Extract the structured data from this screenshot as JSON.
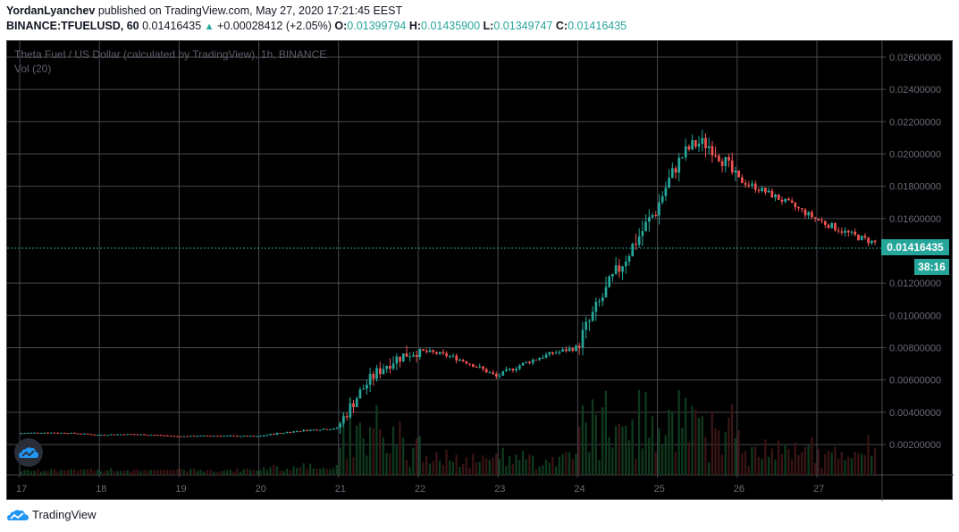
{
  "header": {
    "author": "YordanLyanchev",
    "published_text": "published on TradingView.com, May 27, 2020 17:21:45 EEST",
    "symbol": "BINANCE:TFUELUSD, 60",
    "last_price": "0.01416435",
    "change_arrow": "▲",
    "change": "+0.00028412 (+2.05%)",
    "open_label": "O:",
    "open": "0.01399794",
    "high_label": "H:",
    "high": "0.01435900",
    "low_label": "L:",
    "low": "0.01349747",
    "close_label": "C:",
    "close": "0.01416435"
  },
  "legend": {
    "series_title": "Theta Fuel / US Dollar (calculated by TradingView), 1h, BINANCE",
    "indicator": "Vol (20)"
  },
  "price_tag": {
    "value": "0.01416435",
    "countdown": "38:16"
  },
  "footer": {
    "brand": "TradingView"
  },
  "colors": {
    "up": "#26a69a",
    "down": "#ef5350",
    "background": "#000000",
    "grid": "#4a4a52",
    "axis_text": "#6a6d78",
    "last_price_line": "#26a69a",
    "volume_up": "#0f3a1e",
    "volume_down": "#3a1414"
  },
  "chart_data": {
    "type": "candlestick",
    "title": "Theta Fuel / US Dollar (calculated by TradingView), 1h, BINANCE",
    "symbol": "BINANCE:TFUELUSD",
    "interval": "60",
    "xlabel": "",
    "ylabel": "",
    "y_ticks": [
      "0.02600000",
      "0.02400000",
      "0.02200000",
      "0.02000000",
      "0.01800000",
      "0.01600000",
      "0.01200000",
      "0.01000000",
      "0.00800000",
      "0.00600000",
      "0.00400000",
      "0.00200000"
    ],
    "ylim": [
      0.0,
      0.027
    ],
    "x_ticks": [
      "17",
      "18",
      "19",
      "20",
      "21",
      "22",
      "23",
      "24",
      "25",
      "26",
      "27"
    ],
    "grid": true,
    "last_price": 0.01416435,
    "ohlc_summary": {
      "open": 0.01399794,
      "high": 0.014359,
      "low": 0.01349747,
      "close": 0.01416435,
      "change": 0.00028412,
      "change_pct": 2.05
    },
    "approx_daily_path": [
      {
        "day": "17",
        "open": 0.0027,
        "high": 0.0029,
        "low": 0.0025,
        "close": 0.0026
      },
      {
        "day": "18",
        "open": 0.0026,
        "high": 0.0028,
        "low": 0.0024,
        "close": 0.0025
      },
      {
        "day": "19",
        "open": 0.0025,
        "high": 0.0027,
        "low": 0.0023,
        "close": 0.0025
      },
      {
        "day": "20",
        "open": 0.0025,
        "high": 0.0032,
        "low": 0.0024,
        "close": 0.003
      },
      {
        "day": "21",
        "open": 0.003,
        "high": 0.0096,
        "low": 0.0029,
        "close": 0.0078
      },
      {
        "day": "22",
        "open": 0.0078,
        "high": 0.0085,
        "low": 0.006,
        "close": 0.0062
      },
      {
        "day": "23",
        "open": 0.0062,
        "high": 0.0085,
        "low": 0.006,
        "close": 0.008
      },
      {
        "day": "24",
        "open": 0.008,
        "high": 0.0172,
        "low": 0.0078,
        "close": 0.0165
      },
      {
        "day": "25",
        "open": 0.0165,
        "high": 0.024,
        "low": 0.016,
        "close": 0.0185
      },
      {
        "day": "26",
        "open": 0.0185,
        "high": 0.019,
        "low": 0.0155,
        "close": 0.016
      },
      {
        "day": "27",
        "open": 0.016,
        "high": 0.0165,
        "low": 0.013,
        "close": 0.01416435
      }
    ]
  }
}
